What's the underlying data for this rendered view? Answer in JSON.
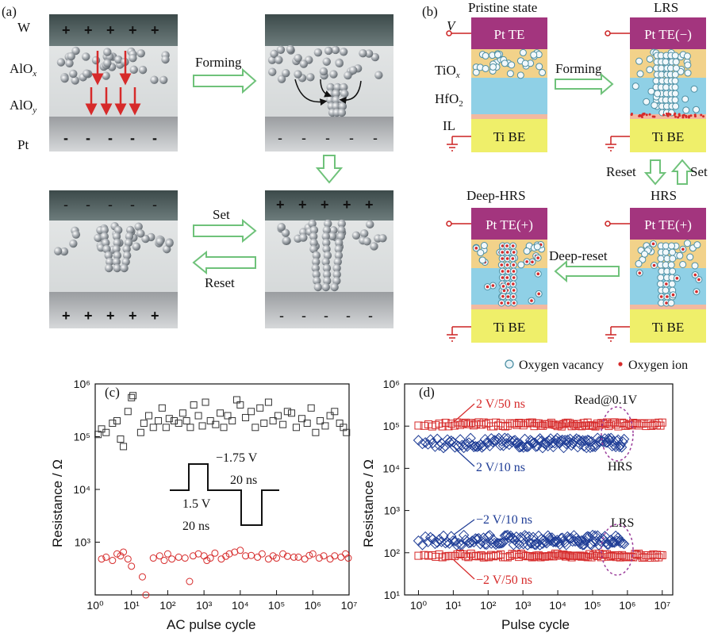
{
  "panel_a": {
    "label": "(a)",
    "layer_top": "W",
    "layer_x": "AlOx",
    "layer_y": "AlOy",
    "layer_bottom": "Pt",
    "forming": "Forming",
    "set": "Set",
    "reset": "Reset"
  },
  "panel_b": {
    "label": "(b)",
    "pristine": "Pristine state",
    "lrs": "LRS",
    "hrs": "HRS",
    "deep_hrs": "Deep-HRS",
    "v_label": "V",
    "te": "Pt TE",
    "te_minus": "Pt TE(−)",
    "te_plus": "Pt TE(+)",
    "be": "Ti BE",
    "tiox": "TiOx",
    "hfo2": "HfO2",
    "il": "IL",
    "forming": "Forming",
    "reset": "Reset",
    "set": "Set",
    "deep_reset": "Deep-reset",
    "legend_vacancy": "Oxygen vacancy",
    "legend_ion": "Oxygen ion",
    "colors": {
      "te": "#a3357e",
      "tiox": "#f2d28a",
      "hfo2": "#8fd0e6",
      "il": "#f2b9a0",
      "be": "#efef6a",
      "arrow": "#6fc27a"
    }
  },
  "chart_data": [
    {
      "panel": "(c)",
      "type": "scatter",
      "xlabel": "AC pulse cycle",
      "ylabel": "Resistance / Ω",
      "xscale": "log",
      "yscale": "log",
      "xlim": [
        1,
        10000000
      ],
      "ylim": [
        100,
        1000000
      ],
      "xticks": [
        "10⁰",
        "10¹",
        "10²",
        "10³",
        "10⁴",
        "10⁵",
        "10⁶",
        "10⁷"
      ],
      "yticks": [
        "10³",
        "10⁴",
        "10⁵",
        "10⁶"
      ],
      "annotations": {
        "neg_v": "−1.75 V",
        "neg_t": "20 ns",
        "pos_v": "1.5 V",
        "pos_t": "20 ns"
      },
      "series": [
        {
          "marker": "square",
          "color": "#333333",
          "x": [
            1.2,
            1.5,
            2,
            3,
            4,
            5,
            6,
            8,
            10,
            11,
            18,
            22,
            30,
            40,
            55,
            70,
            90,
            110,
            150,
            200,
            260,
            330,
            420,
            520,
            700,
            900,
            1100,
            1500,
            2100,
            2800,
            3500,
            4500,
            6000,
            8000,
            10000,
            14000,
            20000,
            26000,
            35000,
            45000,
            60000,
            80000,
            110000,
            150000,
            200000,
            260000,
            350000,
            500000,
            700000,
            900000,
            1200000,
            1600000,
            2200000,
            3000000,
            4000000,
            5500000,
            7000000,
            8500000
          ],
          "y": [
            110000,
            140000,
            120000,
            180000,
            200000,
            90000,
            65000,
            300000,
            550000,
            600000,
            120000,
            180000,
            250000,
            150000,
            200000,
            350000,
            150000,
            220000,
            200000,
            180000,
            280000,
            200000,
            150000,
            400000,
            250000,
            160000,
            450000,
            200000,
            170000,
            280000,
            150000,
            250000,
            200000,
            500000,
            400000,
            230000,
            300000,
            150000,
            350000,
            180000,
            450000,
            200000,
            250000,
            170000,
            300000,
            280000,
            150000,
            220000,
            180000,
            350000,
            120000,
            200000,
            160000,
            250000,
            300000,
            180000,
            150000,
            120000
          ]
        },
        {
          "marker": "circle",
          "color": "#d62a2a",
          "x": [
            1.5,
            2,
            3,
            4,
            5,
            6,
            8,
            10,
            20,
            25,
            40,
            60,
            80,
            100,
            130,
            200,
            300,
            400,
            500,
            700,
            1000,
            1200,
            1500,
            2000,
            3000,
            4000,
            5000,
            7000,
            10000,
            14000,
            20000,
            30000,
            40000,
            60000,
            80000,
            100000,
            150000,
            200000,
            300000,
            400000,
            600000,
            800000,
            1000000,
            1500000,
            2000000,
            3000000,
            4000000,
            6000000,
            8000000,
            9500000
          ],
          "y": [
            480,
            520,
            450,
            600,
            550,
            650,
            480,
            350,
            220,
            100,
            500,
            550,
            450,
            600,
            480,
            520,
            500,
            180,
            550,
            600,
            550,
            450,
            500,
            620,
            480,
            540,
            600,
            650,
            700,
            550,
            560,
            520,
            600,
            480,
            550,
            500,
            600,
            540,
            520,
            520,
            480,
            560,
            600,
            500,
            550,
            480,
            550,
            520,
            600,
            500
          ]
        }
      ]
    },
    {
      "panel": "(d)",
      "type": "scatter",
      "xlabel": "Pulse cycle",
      "ylabel": "Resistance / Ω",
      "xscale": "log",
      "yscale": "log",
      "xlim": [
        0.4,
        20000000
      ],
      "ylim": [
        10,
        1000000
      ],
      "xticks": [
        "10⁰",
        "10¹",
        "10²",
        "10³",
        "10⁴",
        "10⁵",
        "10⁶",
        "10⁷"
      ],
      "yticks": [
        "10¹",
        "10²",
        "10³",
        "10⁴",
        "10⁵",
        "10⁶"
      ],
      "annotations": {
        "read": "Read@0.1V",
        "hrs": "HRS",
        "lrs": "LRS"
      },
      "series": [
        {
          "name": "2 V/50 ns",
          "marker": "square",
          "color": "#d62a2a",
          "level": 110000,
          "xmax": 10000000
        },
        {
          "name": "2 V/10 ns",
          "marker": "diamond",
          "color": "#1f3d96",
          "level": 40000,
          "xmax": 800000
        },
        {
          "name": "−2 V/10 ns",
          "marker": "diamond",
          "color": "#1f3d96",
          "level": 200,
          "xmax": 800000
        },
        {
          "name": "−2 V/50 ns",
          "marker": "square",
          "color": "#d62a2a",
          "level": 85,
          "xmax": 10000000
        }
      ]
    }
  ]
}
